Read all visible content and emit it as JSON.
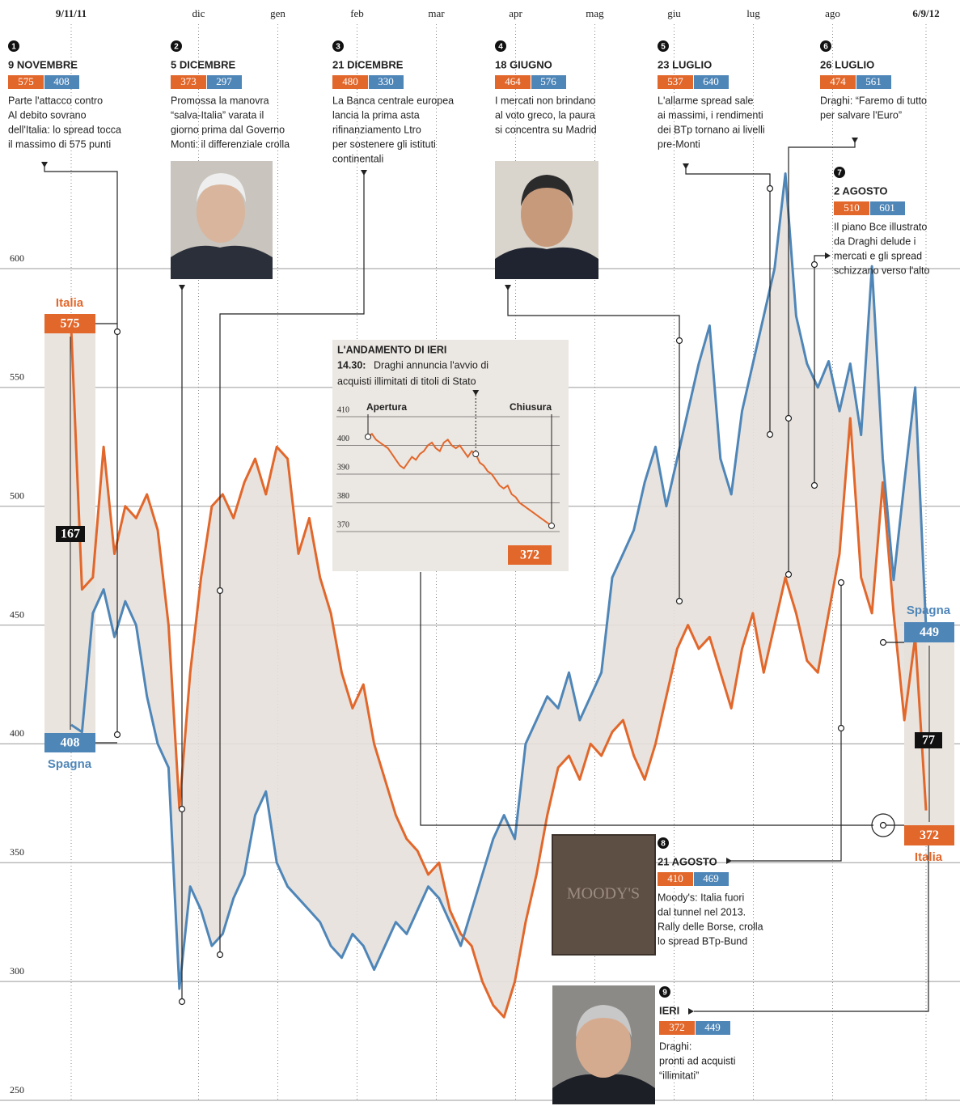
{
  "chart_data": {
    "type": "line",
    "xlim": [
      0,
      302
    ],
    "xticks": [
      {
        "value": 0,
        "label": "9/11/11"
      },
      {
        "value": 45,
        "label": "dic"
      },
      {
        "value": 73,
        "label": "gen"
      },
      {
        "value": 101,
        "label": "feb"
      },
      {
        "value": 129,
        "label": "mar"
      },
      {
        "value": 157,
        "label": "apr"
      },
      {
        "value": 185,
        "label": "mag"
      },
      {
        "value": 213,
        "label": "giu"
      },
      {
        "value": 241,
        "label": "lug"
      },
      {
        "value": 269,
        "label": "ago"
      },
      {
        "value": 302,
        "label": "6/9/12"
      }
    ],
    "ylim": [
      250,
      600
    ],
    "yticks": [
      250,
      300,
      350,
      400,
      450,
      500,
      550,
      600
    ],
    "grid": true,
    "series": [
      {
        "name": "Italia",
        "color": "#e2672b",
        "values": [
          575,
          465,
          470,
          525,
          480,
          500,
          495,
          505,
          490,
          450,
          373,
          430,
          470,
          500,
          505,
          495,
          510,
          520,
          505,
          525,
          520,
          480,
          495,
          470,
          455,
          430,
          415,
          425,
          400,
          385,
          370,
          360,
          355,
          345,
          350,
          330,
          320,
          315,
          300,
          290,
          285,
          300,
          325,
          345,
          370,
          390,
          395,
          385,
          400,
          395,
          405,
          410,
          395,
          385,
          400,
          420,
          440,
          450,
          440,
          445,
          430,
          415,
          440,
          455,
          430,
          450,
          470,
          455,
          435,
          430,
          455,
          480,
          537,
          470,
          455,
          510,
          455,
          410,
          445,
          372
        ]
      },
      {
        "name": "Spagna",
        "color": "#4f86b8",
        "values": [
          408,
          405,
          455,
          465,
          445,
          460,
          450,
          420,
          400,
          390,
          297,
          340,
          330,
          315,
          320,
          335,
          345,
          370,
          380,
          350,
          340,
          335,
          330,
          325,
          315,
          310,
          320,
          315,
          305,
          315,
          325,
          320,
          330,
          340,
          335,
          325,
          315,
          330,
          345,
          360,
          370,
          360,
          400,
          410,
          420,
          415,
          430,
          410,
          420,
          430,
          470,
          480,
          490,
          510,
          525,
          500,
          520,
          540,
          560,
          576,
          520,
          505,
          540,
          560,
          580,
          600,
          640,
          580,
          560,
          550,
          561,
          540,
          560,
          530,
          601,
          520,
          469,
          510,
          550,
          449
        ]
      }
    ],
    "start_labels": {
      "italia": {
        "name": "Italia",
        "value": 575
      },
      "spagna": {
        "name": "Spagna",
        "value": 408
      },
      "gap": 167
    },
    "end_labels": {
      "spagna": {
        "name": "Spagna",
        "value": 449
      },
      "italia": {
        "name": "Italia",
        "value": 372
      },
      "gap": 77
    },
    "annotations": [
      {
        "n": 1,
        "date": "9 NOVEMBRE",
        "italia": 575,
        "spagna": 408,
        "text": [
          "Parte l'attacco contro",
          "Al debito sovrano",
          "dell'Italia: lo spread tocca",
          "il massimo di 575 punti"
        ]
      },
      {
        "n": 2,
        "date": "5 DICEMBRE",
        "italia": 373,
        "spagna": 297,
        "text": [
          "Promossa la manovra",
          "“salva-Italia” varata il",
          "giorno prima dal Governo",
          "Monti: il differenziale crolla"
        ]
      },
      {
        "n": 3,
        "date": "21 DICEMBRE",
        "italia": 480,
        "spagna": 330,
        "text": [
          "La Banca centrale europea",
          "lancia la prima asta",
          "rifinanziamento Ltro",
          "per sostenere gli istituti",
          "continentali"
        ]
      },
      {
        "n": 4,
        "date": "18 GIUGNO",
        "italia": 464,
        "spagna": 576,
        "text": [
          "I mercati non brindano",
          "al voto greco, la paura",
          "si concentra su Madrid"
        ]
      },
      {
        "n": 5,
        "date": "23 LUGLIO",
        "italia": 537,
        "spagna": 640,
        "text": [
          "L'allarme spread sale",
          "ai massimi, i rendimenti",
          "dei BTp tornano ai livelli",
          "pre-Monti"
        ]
      },
      {
        "n": 6,
        "date": "26 LUGLIO",
        "italia": 474,
        "spagna": 561,
        "text": [
          "Draghi: “Faremo di tutto",
          "per salvare l'Euro”"
        ]
      },
      {
        "n": 7,
        "date": "2 AGOSTO",
        "italia": 510,
        "spagna": 601,
        "text": [
          "Il piano Bce illustrato",
          "da Draghi delude i",
          "mercati e gli spread",
          "schizzano verso l'alto"
        ]
      },
      {
        "n": 8,
        "date": "21 AGOSTO",
        "italia": 410,
        "spagna": 469,
        "text": [
          "Moody's: Italia fuori",
          "dal tunnel nel 2013.",
          "Rally delle Borse, crolla",
          "lo spread BTp-Bund"
        ]
      },
      {
        "n": 9,
        "date": "IERI",
        "italia": 372,
        "spagna": 449,
        "text": [
          "Draghi:",
          "pronti ad acquisti",
          "“illimitati”"
        ]
      }
    ],
    "moodys_sign": "MOODY'S",
    "inset": {
      "title": "L'ANDAMENTO DI IERI",
      "time": "14.30:",
      "text": [
        "Draghi annuncia l'avvio di",
        "acquisti illimitati di titoli di Stato"
      ],
      "open_label": "Apertura",
      "close_label": "Chiusura",
      "ylim": [
        365,
        412
      ],
      "yticks": [
        370,
        380,
        390,
        400,
        410
      ],
      "color": "#e2672b",
      "values": [
        403,
        404,
        402,
        401,
        400,
        399,
        397,
        395,
        393,
        392,
        394,
        396,
        395,
        397,
        398,
        400,
        401,
        399,
        398,
        401,
        402,
        400,
        399,
        400,
        398,
        396,
        398,
        397,
        394,
        393,
        391,
        390,
        388,
        386,
        385,
        386,
        383,
        382,
        380,
        379,
        378,
        377,
        376,
        375,
        374,
        373,
        372
      ],
      "close": 372
    }
  }
}
